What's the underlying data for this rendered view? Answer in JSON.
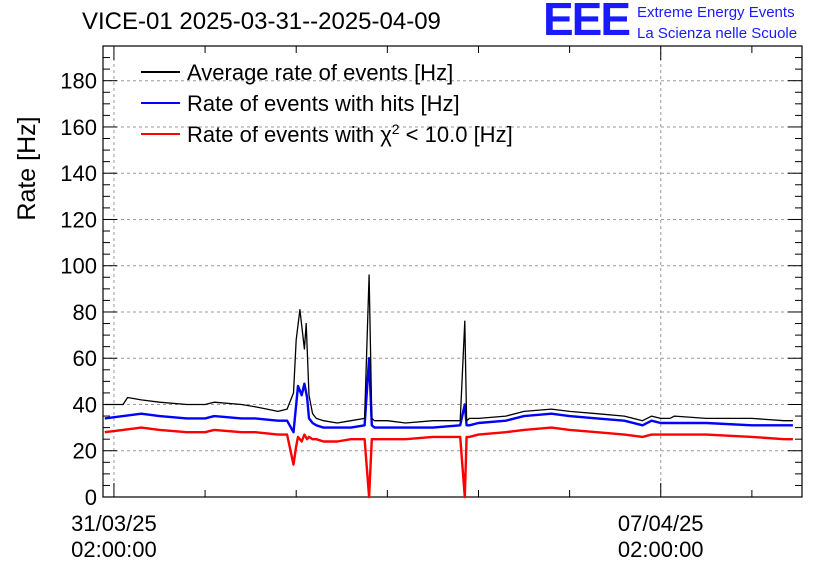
{
  "title": "VICE-01 2025-03-31--2025-04-09",
  "logo": {
    "mark": "EEE",
    "line1": "Extreme Energy Events",
    "line2": "La Scienza nelle Scuole",
    "color": "#1a1aff"
  },
  "chart_data": {
    "type": "line",
    "title": "VICE-01 2025-03-31--2025-04-09",
    "ylabel": "Rate [Hz]",
    "xlabel": "",
    "ylim": [
      0,
      195
    ],
    "xlim": [
      -0.12,
      7.55
    ],
    "yticks": [
      0,
      20,
      40,
      60,
      80,
      100,
      120,
      140,
      160,
      180
    ],
    "xticks": [
      {
        "x": 0,
        "date": "31/03/25",
        "time": "02:00:00"
      },
      {
        "x": 6,
        "date": "07/04/25",
        "time": "02:00:00"
      }
    ],
    "x_unit": "days since 31/03/25 02:00:00",
    "grid": true,
    "legend_position": "top-left",
    "series": [
      {
        "name": "Average rate of events [Hz]",
        "legend_main": "Average rate of events [Hz]",
        "color": "#000000",
        "x": [
          -0.1,
          0.1,
          0.15,
          0.3,
          0.5,
          0.8,
          1.0,
          1.1,
          1.4,
          1.55,
          1.8,
          1.9,
          1.97,
          2.0,
          2.04,
          2.09,
          2.11,
          2.14,
          2.18,
          2.22,
          2.3,
          2.45,
          2.6,
          2.75,
          2.8,
          2.83,
          2.86,
          3.0,
          3.2,
          3.5,
          3.8,
          3.85,
          3.87,
          3.9,
          4.0,
          4.3,
          4.5,
          4.8,
          5.0,
          5.3,
          5.6,
          5.8,
          5.9,
          6.0,
          6.1,
          6.15,
          6.5,
          7.0,
          7.35,
          7.45
        ],
        "y": [
          40,
          40,
          43,
          42,
          41,
          40,
          40,
          41,
          40,
          39,
          37,
          38,
          45,
          68,
          81,
          64,
          75,
          44,
          36,
          34,
          33,
          32,
          33,
          34,
          96,
          34,
          33,
          33,
          32,
          33,
          33,
          76,
          33,
          34,
          34,
          35,
          37,
          38,
          37,
          36,
          35,
          33,
          35,
          34,
          34,
          35,
          34,
          34,
          33,
          33
        ]
      },
      {
        "name": "Rate of events with hits [Hz]",
        "legend_main": "Rate of events with hits [Hz]",
        "color": "#0000ff",
        "x": [
          -0.1,
          0.1,
          0.3,
          0.5,
          0.8,
          1.0,
          1.1,
          1.4,
          1.55,
          1.8,
          1.9,
          1.97,
          2.0,
          2.02,
          2.06,
          2.09,
          2.12,
          2.14,
          2.18,
          2.22,
          2.3,
          2.45,
          2.6,
          2.75,
          2.8,
          2.83,
          2.86,
          3.0,
          3.2,
          3.5,
          3.8,
          3.85,
          3.87,
          3.9,
          4.0,
          4.3,
          4.5,
          4.8,
          5.0,
          5.3,
          5.6,
          5.8,
          5.9,
          6.0,
          6.1,
          6.15,
          6.5,
          7.0,
          7.35,
          7.45
        ],
        "y": [
          34,
          35,
          36,
          35,
          34,
          34,
          35,
          34,
          34,
          33,
          33,
          28,
          40,
          48,
          44,
          49,
          43,
          34,
          32,
          31,
          30,
          30,
          30,
          31,
          60,
          31,
          30,
          30,
          30,
          30,
          31,
          40,
          31,
          31,
          32,
          33,
          35,
          36,
          35,
          34,
          33,
          31,
          33,
          32,
          32,
          32,
          32,
          31,
          31,
          31
        ]
      },
      {
        "name": "Rate of events with χ² < 10.0 [Hz]",
        "legend_main": "Rate of events with χ",
        "legend_sup": "2",
        "legend_tail": " < 10.0 [Hz]",
        "color": "#ff0000",
        "x": [
          -0.1,
          0.1,
          0.3,
          0.5,
          0.8,
          1.0,
          1.1,
          1.4,
          1.55,
          1.8,
          1.9,
          1.97,
          2.0,
          2.02,
          2.06,
          2.09,
          2.12,
          2.14,
          2.18,
          2.22,
          2.3,
          2.45,
          2.6,
          2.75,
          2.8,
          2.83,
          2.86,
          3.0,
          3.2,
          3.5,
          3.8,
          3.85,
          3.87,
          3.9,
          4.0,
          4.3,
          4.5,
          4.8,
          5.0,
          5.3,
          5.6,
          5.8,
          5.9,
          6.0,
          6.1,
          6.15,
          6.5,
          7.0,
          7.35,
          7.45
        ],
        "y": [
          28,
          29,
          30,
          29,
          28,
          28,
          29,
          28,
          28,
          27,
          27,
          14,
          22,
          26,
          24,
          27,
          25,
          26,
          25,
          25,
          24,
          24,
          25,
          25,
          0,
          25,
          25,
          25,
          25,
          26,
          26,
          0,
          26,
          26,
          27,
          28,
          29,
          30,
          29,
          28,
          27,
          26,
          27,
          27,
          27,
          27,
          27,
          26,
          25,
          25
        ]
      }
    ]
  }
}
